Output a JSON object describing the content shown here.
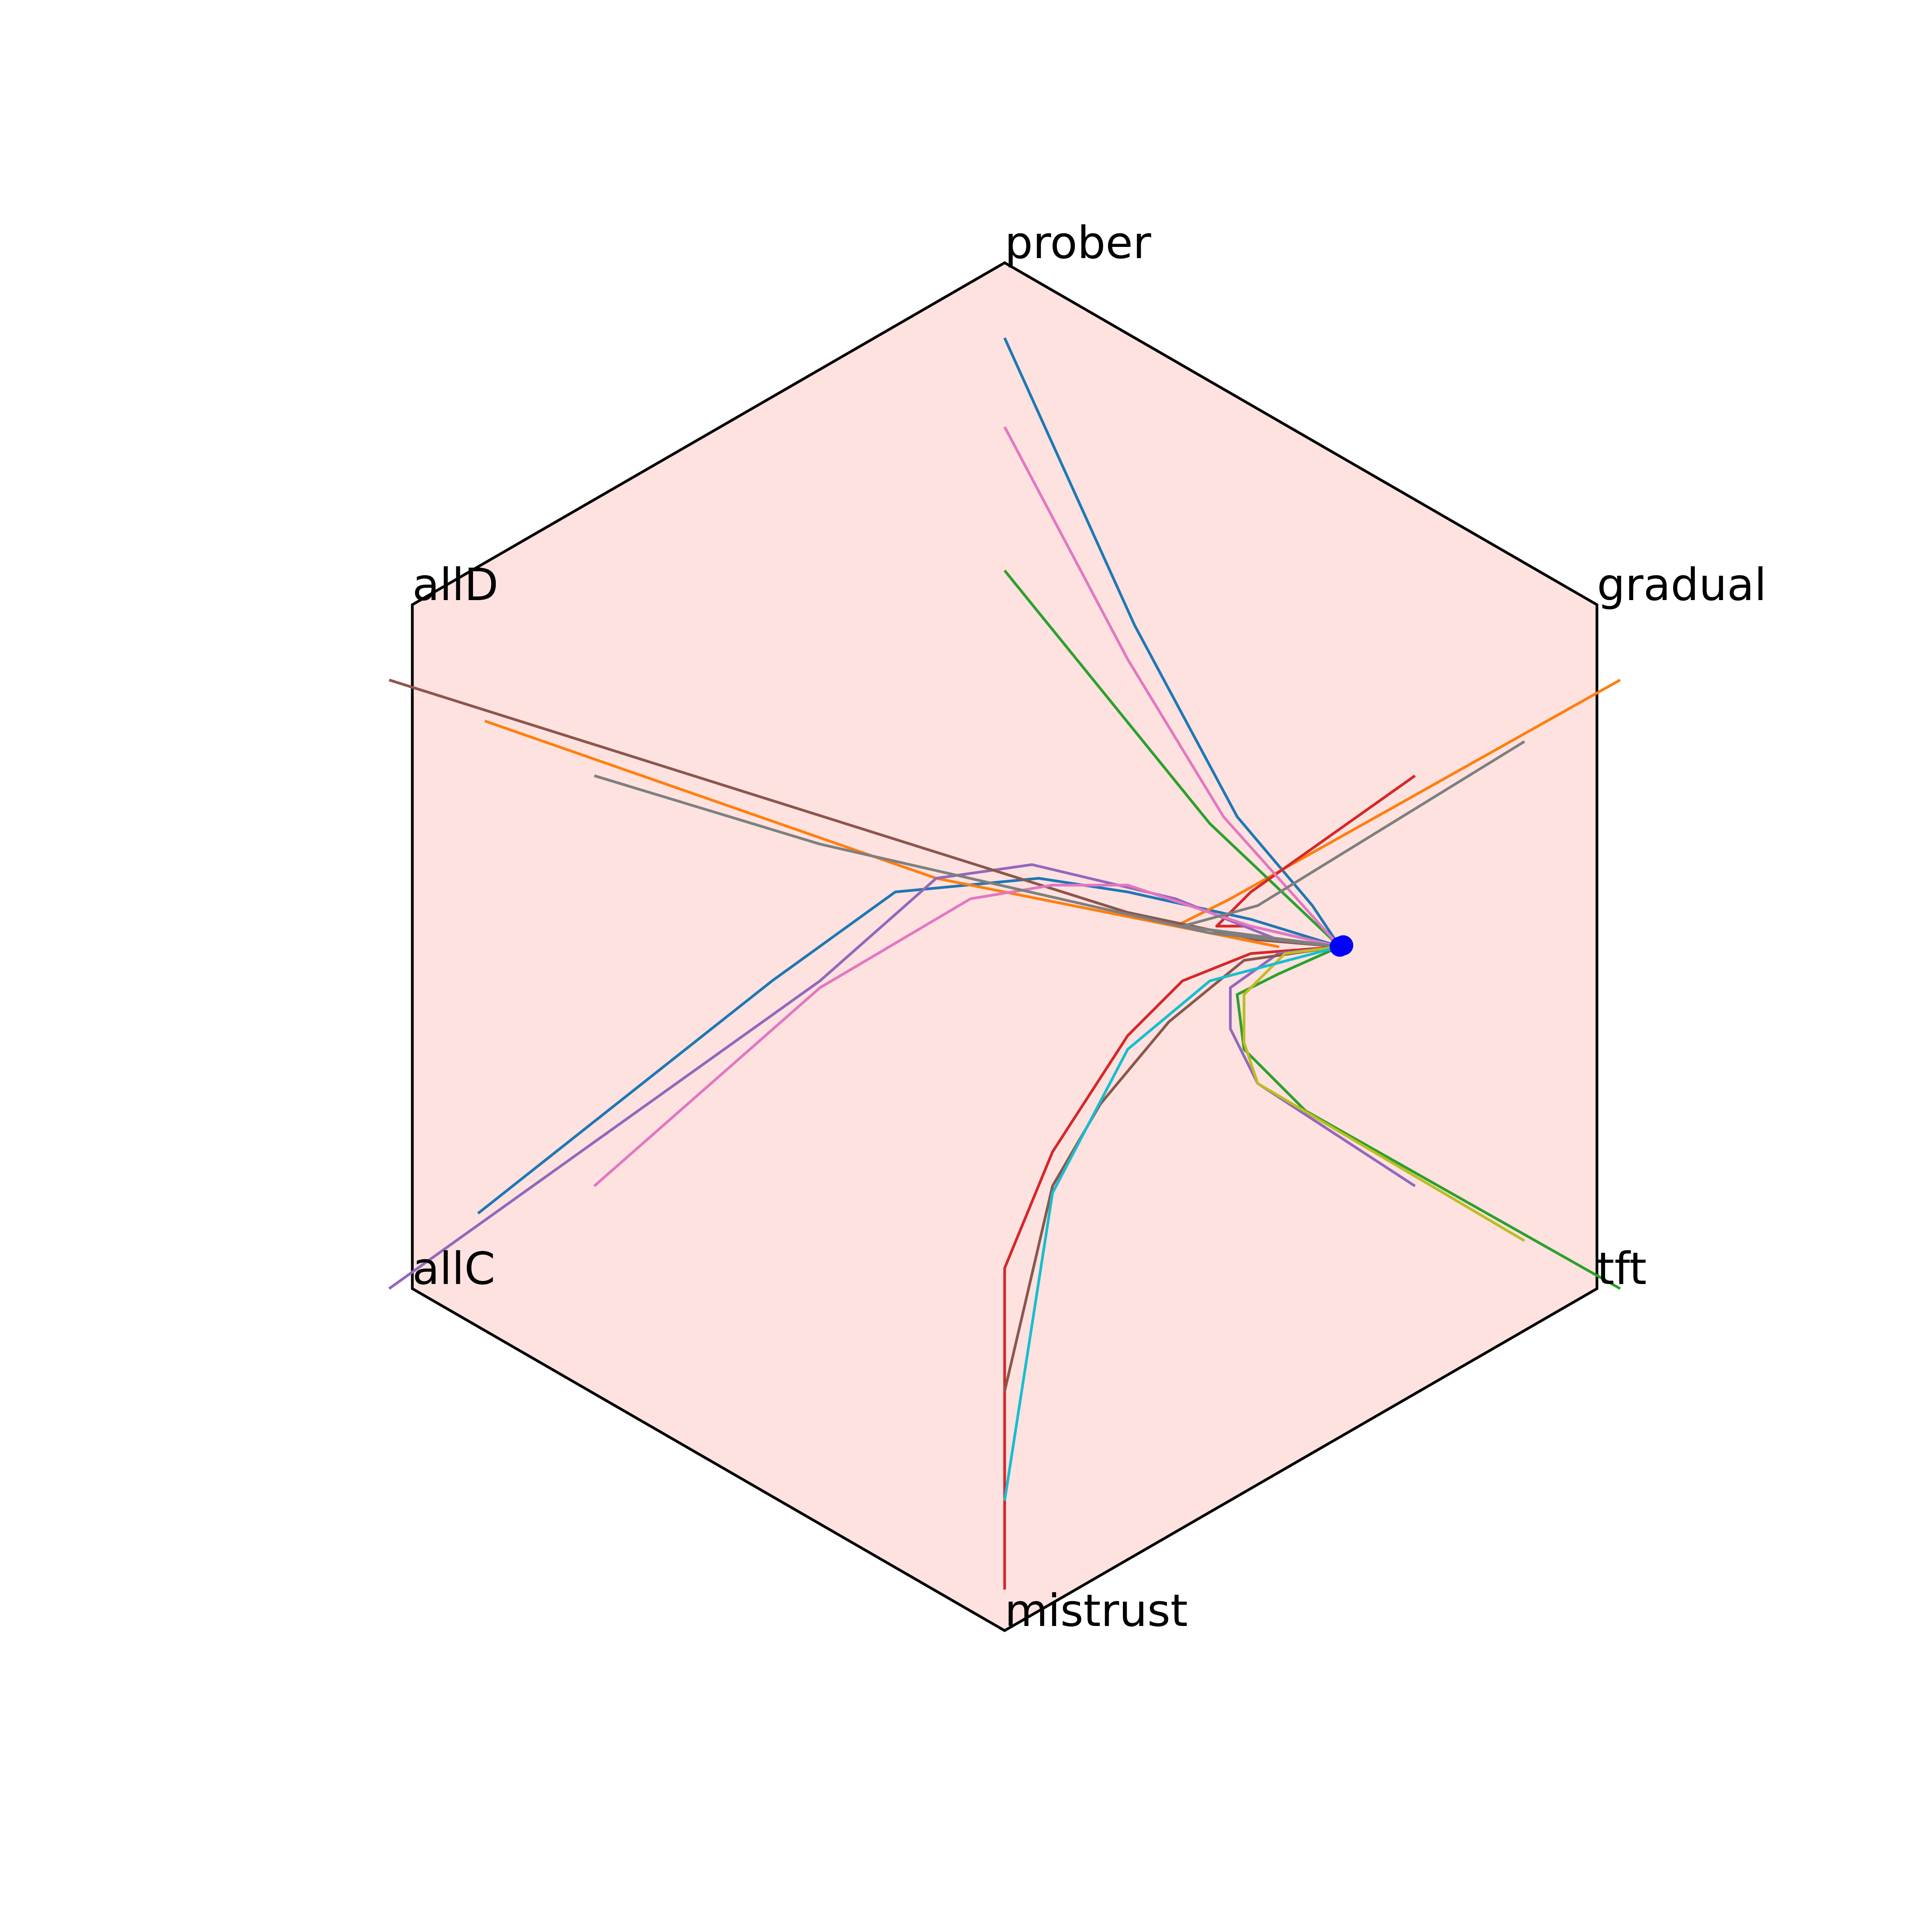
{
  "chart_data": {
    "type": "line",
    "title": "",
    "xlabel": "",
    "ylabel": "",
    "grid": false,
    "legend": "none",
    "colors": {
      "background": "#fde2e0",
      "edge": "#000000",
      "endpoint": "#0000ff"
    },
    "vertices": [
      {
        "name": "prober",
        "angle_deg": 90,
        "label_anchor": "start"
      },
      {
        "name": "gradual",
        "angle_deg": 30,
        "label_anchor": "start"
      },
      {
        "name": "tft",
        "angle_deg": -30,
        "label_anchor": "start"
      },
      {
        "name": "mistrust",
        "angle_deg": -90,
        "label_anchor": "start"
      },
      {
        "name": "allC",
        "angle_deg": -150,
        "label_anchor": "start"
      },
      {
        "name": "allD",
        "angle_deg": 150,
        "label_anchor": "start"
      }
    ],
    "series": [
      {
        "color": "#1f77b4",
        "points": [
          [
            0.0,
            0.89
          ],
          [
            0.19,
            0.47
          ],
          [
            0.34,
            0.19
          ],
          [
            0.45,
            0.06
          ],
          [
            0.49,
            0.0
          ],
          [
            0.36,
            0.04
          ],
          [
            0.18,
            0.08
          ],
          [
            0.05,
            0.1
          ],
          [
            -0.16,
            0.08
          ],
          [
            -0.34,
            -0.05
          ],
          [
            -0.77,
            -0.39
          ]
        ]
      },
      {
        "color": "#ff7f0e",
        "points": [
          [
            0.9,
            0.39
          ],
          [
            0.33,
            0.07
          ],
          [
            0.25,
            0.03
          ],
          [
            0.4,
            0.0
          ],
          [
            0.3,
            0.02
          ],
          [
            -0.1,
            0.1
          ],
          [
            -0.76,
            0.33
          ]
        ]
      },
      {
        "color": "#2ca02c",
        "points": [
          [
            0.0,
            0.55
          ],
          [
            0.3,
            0.18
          ],
          [
            0.49,
            0.0
          ],
          [
            0.4,
            -0.04
          ],
          [
            0.34,
            -0.07
          ],
          [
            0.35,
            -0.15
          ],
          [
            0.44,
            -0.24
          ],
          [
            0.9,
            -0.5
          ]
        ]
      },
      {
        "color": "#d62728",
        "points": [
          [
            0.6,
            0.25
          ],
          [
            0.36,
            0.08
          ],
          [
            0.31,
            0.03
          ],
          [
            0.36,
            0.03
          ],
          [
            0.49,
            0.0
          ],
          [
            0.36,
            -0.01
          ],
          [
            0.26,
            -0.05
          ],
          [
            0.18,
            -0.13
          ],
          [
            0.07,
            -0.3
          ],
          [
            0.0,
            -0.47
          ],
          [
            0.0,
            -0.94
          ]
        ]
      },
      {
        "color": "#9467bd",
        "points": [
          [
            0.6,
            -0.35
          ],
          [
            0.37,
            -0.2
          ],
          [
            0.33,
            -0.12
          ],
          [
            0.33,
            -0.06
          ],
          [
            0.4,
            -0.01
          ],
          [
            0.49,
            0.0
          ],
          [
            0.4,
            0.01
          ],
          [
            0.25,
            0.07
          ],
          [
            0.04,
            0.12
          ],
          [
            -0.1,
            0.1
          ],
          [
            -0.27,
            -0.05
          ],
          [
            -0.9,
            -0.5
          ]
        ]
      },
      {
        "color": "#8c564b",
        "points": [
          [
            0.0,
            -0.65
          ],
          [
            0.07,
            -0.35
          ],
          [
            0.14,
            -0.23
          ],
          [
            0.24,
            -0.11
          ],
          [
            0.35,
            -0.02
          ],
          [
            0.49,
            0.0
          ],
          [
            0.37,
            0.01
          ],
          [
            0.18,
            0.05
          ],
          [
            -0.9,
            0.39
          ]
        ]
      },
      {
        "color": "#e377c2",
        "points": [
          [
            0.0,
            0.76
          ],
          [
            0.18,
            0.42
          ],
          [
            0.32,
            0.19
          ],
          [
            0.49,
            0.0
          ],
          [
            0.36,
            0.03
          ],
          [
            0.18,
            0.09
          ],
          [
            0.07,
            0.09
          ],
          [
            -0.05,
            0.07
          ],
          [
            -0.27,
            -0.06
          ],
          [
            -0.6,
            -0.35
          ]
        ]
      },
      {
        "color": "#7f7f7f",
        "points": [
          [
            0.76,
            0.3
          ],
          [
            0.37,
            0.06
          ],
          [
            0.26,
            0.03
          ],
          [
            0.49,
            0.0
          ],
          [
            0.3,
            0.02
          ],
          [
            -0.27,
            0.15
          ],
          [
            -0.6,
            0.25
          ]
        ]
      },
      {
        "color": "#bcbd22",
        "points": [
          [
            0.76,
            -0.43
          ],
          [
            0.37,
            -0.2
          ],
          [
            0.35,
            -0.14
          ],
          [
            0.35,
            -0.07
          ],
          [
            0.41,
            -0.01
          ],
          [
            0.49,
            0.0
          ]
        ]
      },
      {
        "color": "#17becf",
        "points": [
          [
            0.0,
            -0.81
          ],
          [
            0.07,
            -0.36
          ],
          [
            0.18,
            -0.15
          ],
          [
            0.3,
            -0.05
          ],
          [
            0.49,
            0.0
          ]
        ]
      }
    ],
    "endpoints": [
      [
        0.49,
        0.0
      ],
      [
        0.495,
        0.002
      ]
    ]
  }
}
